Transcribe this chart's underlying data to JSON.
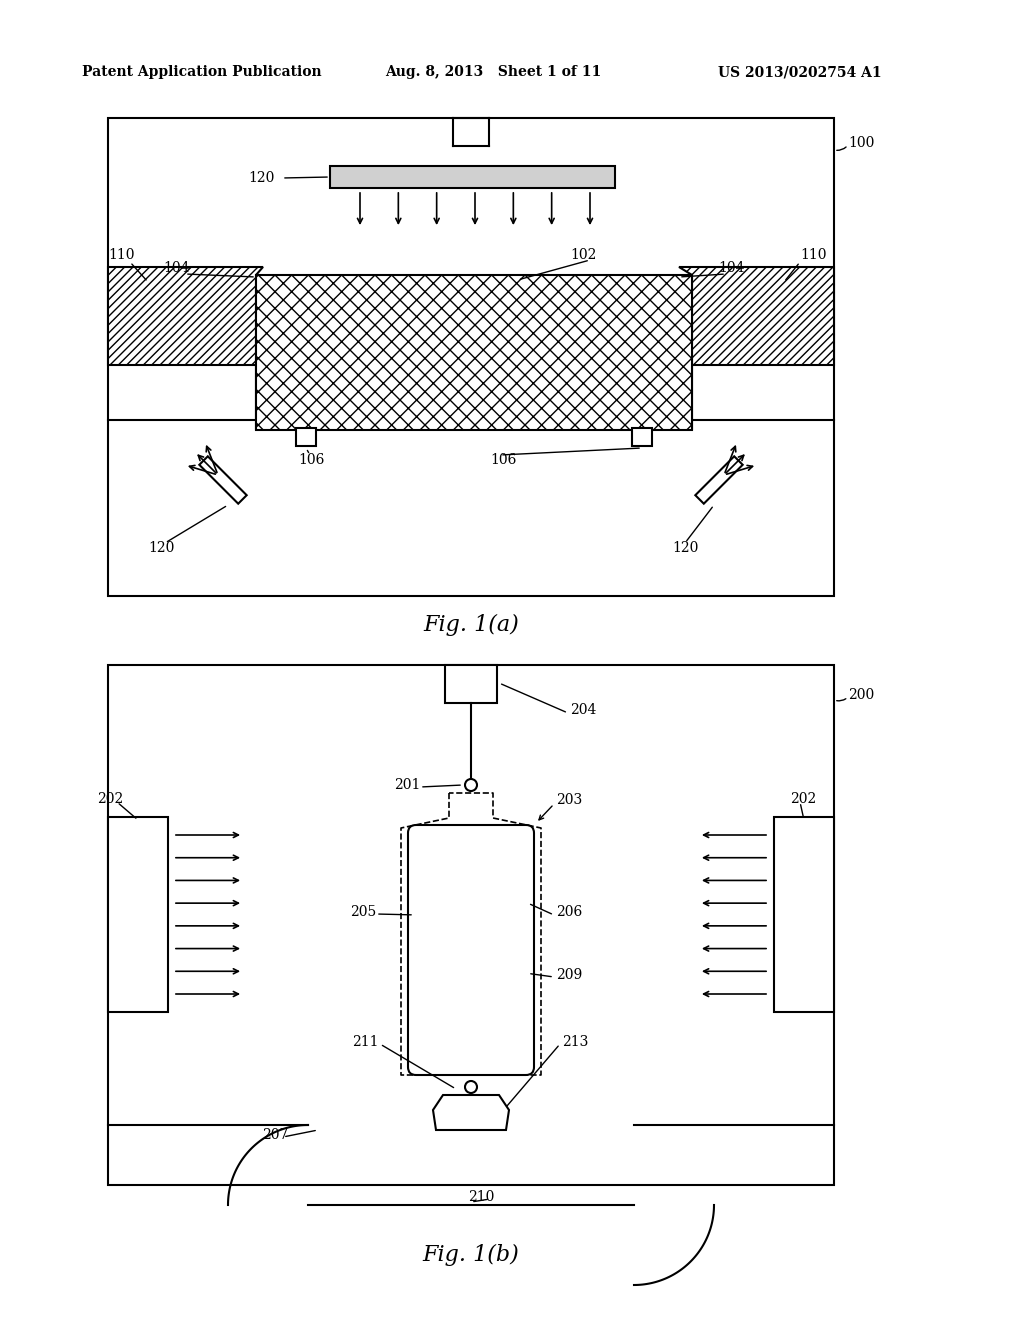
{
  "header_left": "Patent Application Publication",
  "header_mid": "Aug. 8, 2013   Sheet 1 of 11",
  "header_right": "US 2013/0202754 A1",
  "fig_a_label": "Fig. 1(a)",
  "fig_b_label": "Fig. 1(b)",
  "bg_color": "#ffffff",
  "line_color": "#000000"
}
